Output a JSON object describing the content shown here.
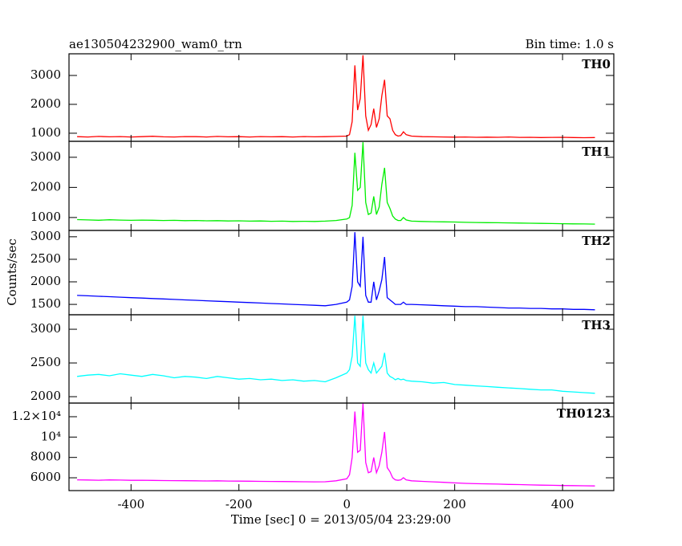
{
  "chart_data": {
    "type": "line",
    "title": "ae130504232900_wam0_trn",
    "subtitle": "Bin time: 1.0 s",
    "ylabel": "Counts/sec",
    "xlabel": "Time [sec] 0 = 2013/05/04 23:29:00",
    "xlim": [
      -515,
      495
    ],
    "xticks": [
      -400,
      -200,
      0,
      200,
      400
    ],
    "x": [
      -500,
      -480,
      -460,
      -440,
      -420,
      -400,
      -380,
      -360,
      -340,
      -320,
      -300,
      -280,
      -260,
      -240,
      -220,
      -200,
      -180,
      -160,
      -140,
      -120,
      -100,
      -80,
      -60,
      -40,
      -20,
      0,
      5,
      10,
      15,
      20,
      25,
      30,
      35,
      40,
      45,
      50,
      55,
      60,
      65,
      70,
      75,
      80,
      85,
      90,
      95,
      100,
      105,
      110,
      120,
      140,
      160,
      180,
      200,
      220,
      240,
      260,
      280,
      300,
      320,
      340,
      360,
      380,
      400,
      420,
      440,
      460
    ],
    "series": [
      {
        "name": "TH0",
        "color": "#ff0000",
        "ylim": [
          720,
          3750
        ],
        "yticks": [
          1000,
          2000,
          3000
        ],
        "values": [
          880,
          870,
          890,
          875,
          885,
          870,
          880,
          895,
          875,
          870,
          885,
          880,
          870,
          890,
          875,
          880,
          870,
          885,
          875,
          880,
          870,
          885,
          875,
          880,
          890,
          900,
          950,
          1400,
          3350,
          1800,
          2200,
          3700,
          1600,
          1100,
          1300,
          1850,
          1200,
          1500,
          2300,
          2850,
          1600,
          1500,
          1100,
          950,
          900,
          920,
          1050,
          950,
          900,
          880,
          875,
          870,
          865,
          870,
          860,
          865,
          860,
          870,
          855,
          860,
          850,
          855,
          860,
          850,
          845,
          850
        ]
      },
      {
        "name": "TH1",
        "color": "#00ee00",
        "ylim": [
          570,
          3530
        ],
        "yticks": [
          1000,
          2000,
          3000
        ],
        "values": [
          930,
          920,
          910,
          925,
          915,
          905,
          915,
          910,
          900,
          905,
          895,
          900,
          890,
          895,
          885,
          890,
          880,
          885,
          875,
          880,
          870,
          875,
          870,
          880,
          900,
          950,
          1000,
          1400,
          3150,
          1900,
          2000,
          3500,
          1500,
          1100,
          1150,
          1700,
          1100,
          1350,
          2100,
          2650,
          1500,
          1300,
          1050,
          950,
          900,
          900,
          1000,
          920,
          880,
          870,
          860,
          855,
          850,
          840,
          835,
          830,
          825,
          820,
          815,
          810,
          805,
          800,
          795,
          790,
          785,
          780
        ]
      },
      {
        "name": "TH2",
        "color": "#0000ff",
        "ylim": [
          1270,
          3140
        ],
        "yticks": [
          1500,
          2000,
          2500,
          3000
        ],
        "values": [
          1700,
          1690,
          1680,
          1670,
          1660,
          1650,
          1640,
          1630,
          1620,
          1610,
          1600,
          1590,
          1580,
          1570,
          1560,
          1550,
          1540,
          1530,
          1520,
          1510,
          1500,
          1490,
          1480,
          1470,
          1500,
          1550,
          1600,
          1900,
          3100,
          2000,
          1900,
          3000,
          1700,
          1550,
          1550,
          2000,
          1600,
          1800,
          2050,
          2550,
          1650,
          1600,
          1550,
          1500,
          1500,
          1500,
          1550,
          1500,
          1500,
          1490,
          1480,
          1470,
          1460,
          1450,
          1450,
          1440,
          1430,
          1420,
          1420,
          1410,
          1410,
          1400,
          1400,
          1390,
          1390,
          1380
        ]
      },
      {
        "name": "TH3",
        "color": "#00ffff",
        "ylim": [
          1905,
          3215
        ],
        "yticks": [
          2000,
          2500,
          3000
        ],
        "values": [
          2300,
          2320,
          2330,
          2310,
          2340,
          2320,
          2300,
          2330,
          2310,
          2280,
          2300,
          2290,
          2270,
          2300,
          2280,
          2260,
          2270,
          2250,
          2260,
          2240,
          2250,
          2230,
          2240,
          2220,
          2280,
          2350,
          2400,
          2600,
          3200,
          2500,
          2450,
          3200,
          2500,
          2400,
          2350,
          2500,
          2350,
          2400,
          2450,
          2650,
          2350,
          2300,
          2280,
          2250,
          2270,
          2250,
          2260,
          2240,
          2230,
          2220,
          2200,
          2210,
          2180,
          2170,
          2160,
          2150,
          2140,
          2130,
          2120,
          2110,
          2100,
          2100,
          2080,
          2070,
          2060,
          2050
        ]
      },
      {
        "name": "TH0123",
        "color": "#ff00ff",
        "ylim": [
          4740,
          13340
        ],
        "yticks": [
          6000,
          8000,
          {
            "value": 10000,
            "label": "10⁴"
          },
          {
            "value": 12000,
            "label": "1.2×10⁴"
          }
        ],
        "values": [
          5800,
          5780,
          5760,
          5790,
          5770,
          5750,
          5760,
          5740,
          5730,
          5720,
          5710,
          5700,
          5690,
          5700,
          5680,
          5670,
          5660,
          5650,
          5640,
          5630,
          5620,
          5610,
          5600,
          5610,
          5700,
          5900,
          6300,
          8000,
          12500,
          8500,
          8700,
          13300,
          7500,
          6500,
          6600,
          8000,
          6500,
          7200,
          8500,
          10500,
          7000,
          6600,
          6000,
          5800,
          5750,
          5800,
          6000,
          5800,
          5700,
          5650,
          5600,
          5550,
          5500,
          5450,
          5420,
          5400,
          5380,
          5350,
          5330,
          5300,
          5280,
          5260,
          5240,
          5230,
          5210,
          5200
        ]
      }
    ]
  }
}
